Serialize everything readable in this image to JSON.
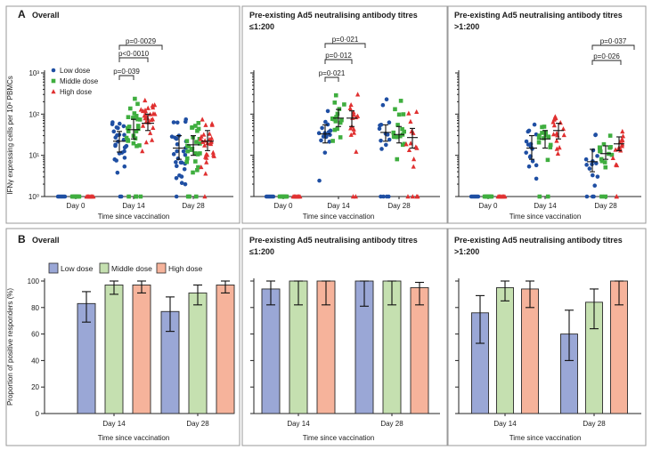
{
  "figure": {
    "row_a_letter": "A",
    "row_b_letter": "B",
    "x_axis_title": "Time since vaccination",
    "row_a_y_label": "IFNγ expressing cells per 10⁶ PBMCs",
    "row_b_y_label": "Proportion of positive responders (%)"
  },
  "panels": [
    {
      "title_line1": "Overall",
      "title_line2": ""
    },
    {
      "title_line1": "Pre-existing Ad5 neutralising antibody titres",
      "title_line2": "≤1:200"
    },
    {
      "title_line1": "Pre-existing Ad5 neutralising antibody titres",
      "title_line2": ">1:200"
    }
  ],
  "colors": {
    "low_marker": "#1f4fa3",
    "middle_marker": "#3fae3f",
    "high_marker": "#e03030",
    "low_bar": "#9aa7d6",
    "middle_bar": "#c5e0b0",
    "high_bar": "#f6b39b"
  },
  "chart_data": [
    {
      "type": "scatter",
      "panel": "A-overall",
      "title": "Overall",
      "xlabel": "Time since vaccination",
      "ylabel": "IFNγ expressing cells per 10⁶ PBMCs",
      "categories": [
        "Day 0",
        "Day 14",
        "Day 28"
      ],
      "y_scale": "log",
      "ylim": [
        1,
        1000
      ],
      "y_ticks": [
        "10⁰",
        "10¹",
        "10²",
        "10³"
      ],
      "legend_position": "top-left",
      "series": [
        {
          "name": "Low dose",
          "marker": "circle",
          "median": [
            1,
            22,
            15
          ],
          "iqr_low": [
            1,
            12,
            8
          ],
          "iqr_high": [
            1,
            38,
            30
          ]
        },
        {
          "name": "Middle dose",
          "marker": "square",
          "median": [
            1,
            42,
            18
          ],
          "iqr_low": [
            1,
            25,
            10
          ],
          "iqr_high": [
            1,
            75,
            30
          ]
        },
        {
          "name": "High dose",
          "marker": "triangle",
          "median": [
            1,
            60,
            22
          ],
          "iqr_low": [
            1,
            40,
            13
          ],
          "iqr_high": [
            1,
            100,
            40
          ]
        }
      ],
      "annotations": [
        "p=0·0029",
        "p<0·0010",
        "p=0·039"
      ]
    },
    {
      "type": "scatter",
      "panel": "A-low-titre",
      "title": "Pre-existing Ad5 neutralising antibody titres ≤1:200",
      "xlabel": "Time since vaccination",
      "categories": [
        "Day 0",
        "Day 14",
        "Day 28"
      ],
      "y_scale": "log",
      "ylim": [
        1,
        1000
      ],
      "series": [
        {
          "name": "Low dose",
          "median": [
            1,
            33,
            36
          ],
          "iqr_low": [
            1,
            20,
            22
          ],
          "iqr_high": [
            1,
            55,
            55
          ]
        },
        {
          "name": "Middle dose",
          "median": [
            1,
            80,
            32
          ],
          "iqr_low": [
            1,
            50,
            20
          ],
          "iqr_high": [
            1,
            130,
            50
          ]
        },
        {
          "name": "High dose",
          "median": [
            1,
            80,
            27
          ],
          "iqr_low": [
            1,
            50,
            15
          ],
          "iqr_high": [
            1,
            120,
            45
          ]
        }
      ],
      "annotations": [
        "p=0·021",
        "p=0·012",
        "p=0·021"
      ]
    },
    {
      "type": "scatter",
      "panel": "A-high-titre",
      "title": "Pre-existing Ad5 neutralising antibody titres >1:200",
      "xlabel": "Time since vaccination",
      "categories": [
        "Day 0",
        "Day 14",
        "Day 28"
      ],
      "y_scale": "log",
      "ylim": [
        1,
        1000
      ],
      "series": [
        {
          "name": "Low dose",
          "median": [
            1,
            15,
            7
          ],
          "iqr_low": [
            1,
            8,
            4
          ],
          "iqr_high": [
            1,
            30,
            14
          ]
        },
        {
          "name": "Middle dose",
          "median": [
            1,
            25,
            11
          ],
          "iqr_low": [
            1,
            15,
            8
          ],
          "iqr_high": [
            1,
            40,
            17
          ]
        },
        {
          "name": "High dose",
          "median": [
            1,
            40,
            19
          ],
          "iqr_low": [
            1,
            25,
            13
          ],
          "iqr_high": [
            1,
            60,
            28
          ]
        }
      ],
      "annotations": [
        "p=0·037",
        "p=0·026"
      ]
    },
    {
      "type": "bar",
      "panel": "B-overall",
      "title": "Overall",
      "xlabel": "Time since vaccination",
      "ylabel": "Proportion of positive responders (%)",
      "categories": [
        "Day 14",
        "Day 28"
      ],
      "ylim": [
        0,
        100
      ],
      "y_ticks": [
        0,
        20,
        40,
        60,
        80,
        100
      ],
      "legend_position": "top",
      "series": [
        {
          "name": "Low dose",
          "values": [
            83,
            77
          ],
          "err_low": [
            69,
            62
          ],
          "err_high": [
            92,
            88
          ]
        },
        {
          "name": "Middle dose",
          "values": [
            97,
            91
          ],
          "err_low": [
            90,
            82
          ],
          "err_high": [
            100,
            97
          ]
        },
        {
          "name": "High dose",
          "values": [
            97,
            97
          ],
          "err_low": [
            91,
            91
          ],
          "err_high": [
            100,
            100
          ]
        }
      ]
    },
    {
      "type": "bar",
      "panel": "B-low-titre",
      "title": "Pre-existing Ad5 neutralising antibody titres ≤1:200",
      "xlabel": "Time since vaccination",
      "categories": [
        "Day 14",
        "Day 28"
      ],
      "ylim": [
        0,
        100
      ],
      "series": [
        {
          "name": "Low dose",
          "values": [
            94,
            100
          ],
          "err_low": [
            82,
            81
          ],
          "err_high": [
            100,
            100
          ]
        },
        {
          "name": "Middle dose",
          "values": [
            100,
            100
          ],
          "err_low": [
            82,
            82
          ],
          "err_high": [
            100,
            100
          ]
        },
        {
          "name": "High dose",
          "values": [
            100,
            95
          ],
          "err_low": [
            82,
            82
          ],
          "err_high": [
            100,
            99
          ]
        }
      ]
    },
    {
      "type": "bar",
      "panel": "B-high-titre",
      "title": "Pre-existing Ad5 neutralising antibody titres >1:200",
      "xlabel": "Time since vaccination",
      "categories": [
        "Day 14",
        "Day 28"
      ],
      "ylim": [
        0,
        100
      ],
      "series": [
        {
          "name": "Low dose",
          "values": [
            76,
            60
          ],
          "err_low": [
            53,
            40
          ],
          "err_high": [
            89,
            78
          ]
        },
        {
          "name": "Middle dose",
          "values": [
            95,
            84
          ],
          "err_low": [
            85,
            64
          ],
          "err_high": [
            100,
            94
          ]
        },
        {
          "name": "High dose",
          "values": [
            94,
            100
          ],
          "err_low": [
            80,
            82
          ],
          "err_high": [
            100,
            100
          ]
        }
      ]
    }
  ]
}
